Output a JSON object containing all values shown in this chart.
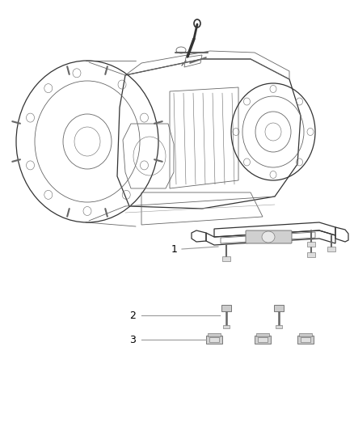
{
  "background_color": "#ffffff",
  "fig_width": 4.38,
  "fig_height": 5.33,
  "dpi": 100,
  "label_1": "1",
  "label_2": "2",
  "label_3": "3",
  "label_color": "#000000",
  "line_color": "#999999",
  "dark_line": "#333333",
  "mid_line": "#666666",
  "light_line": "#aaaaaa"
}
